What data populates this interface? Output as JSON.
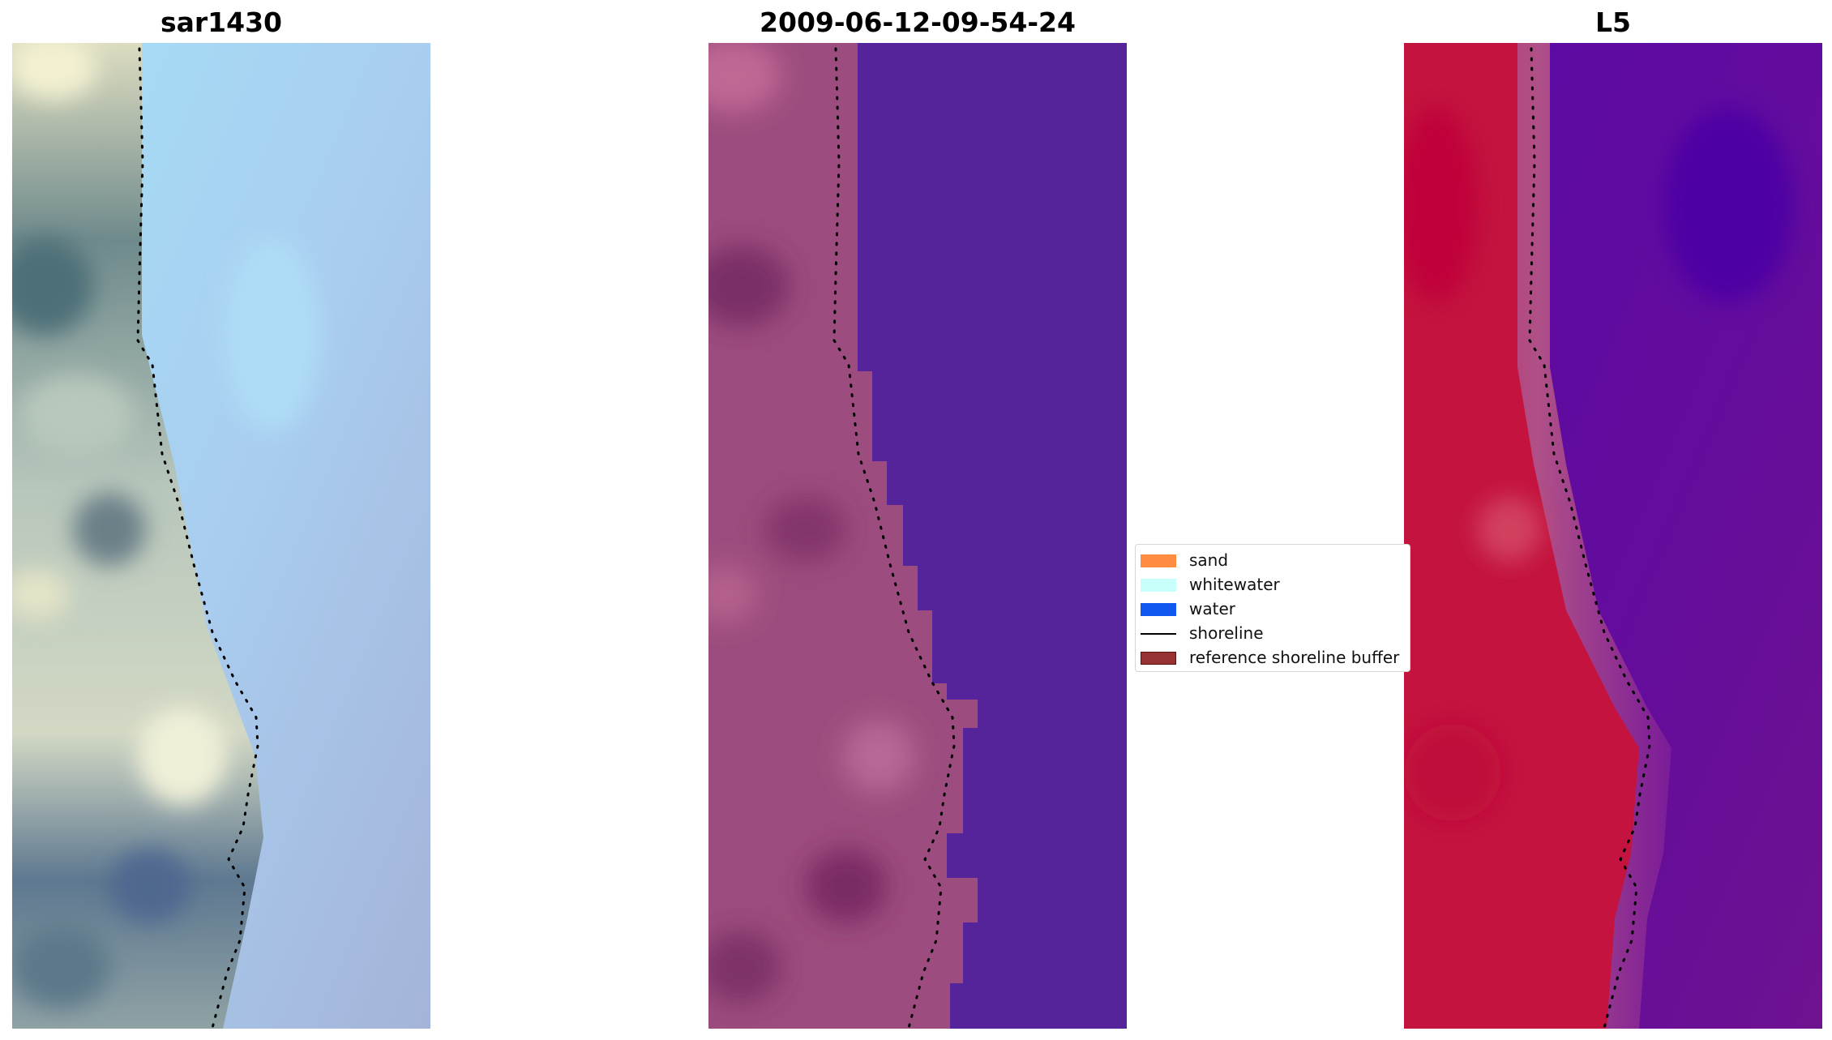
{
  "panels": [
    {
      "id": "rgb",
      "title": "sar1430"
    },
    {
      "id": "classification",
      "title": "2009-06-12-09-54-24"
    },
    {
      "id": "index",
      "title": "L5"
    }
  ],
  "legend": {
    "placement": "center",
    "entries": [
      {
        "label": "sand",
        "kind": "patch",
        "color": "#ff8c40"
      },
      {
        "label": "whitewater",
        "kind": "patch",
        "color": "#c8fffa"
      },
      {
        "label": "water",
        "kind": "patch",
        "color": "#1058f0"
      },
      {
        "label": "shoreline",
        "kind": "line",
        "color": "#000000"
      },
      {
        "label": "reference shoreline buffer",
        "kind": "patch",
        "color": "#963232"
      }
    ]
  },
  "colors": {
    "rgb_water": "#a9d2f0",
    "rgb_land": "#9fb1a8",
    "class_land": "#9c4c7e",
    "class_water": "#55239a",
    "index_land": "#c3133e",
    "index_water": "#640c9c",
    "shoreline": "#000000"
  }
}
